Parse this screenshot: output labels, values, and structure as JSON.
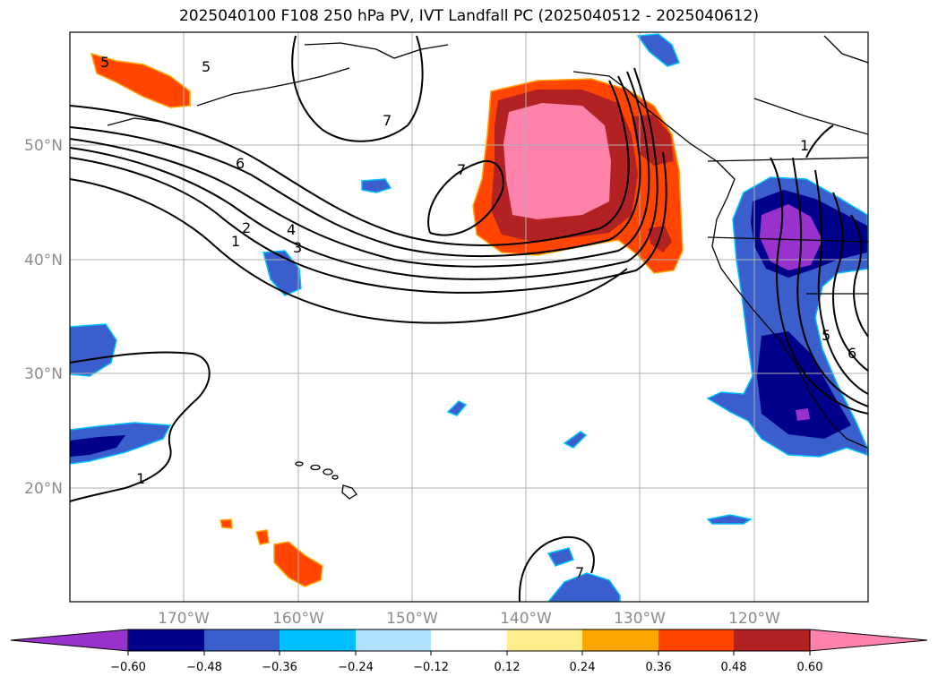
{
  "title": "2025040100 F108 250 hPa PV, IVT Landfall PC (2025040512 - 2025040612)",
  "map": {
    "lat_labels": [
      "50°N",
      "40°N",
      "30°N",
      "20°N"
    ],
    "lon_labels": [
      "170°W",
      "160°W",
      "150°W",
      "140°W",
      "130°W",
      "120°W"
    ],
    "contour_labels": [
      "5",
      "5",
      "7",
      "6",
      "2",
      "4",
      "3",
      "1",
      "7",
      "1",
      "1",
      "5",
      "6",
      "7"
    ],
    "colorbar_ticks": [
      "−0.60",
      "−0.48",
      "−0.36",
      "−0.24",
      "−0.12",
      "0.12",
      "0.24",
      "0.36",
      "0.48",
      "0.60"
    ],
    "colorbar_colors": [
      "#9932cc",
      "#00008b",
      "#3a5fcd",
      "#00bfff",
      "#b0e2ff",
      "#ffffff",
      "#ffec8b",
      "#ffa500",
      "#ff4500",
      "#b22222",
      "#ff82ab"
    ]
  }
}
